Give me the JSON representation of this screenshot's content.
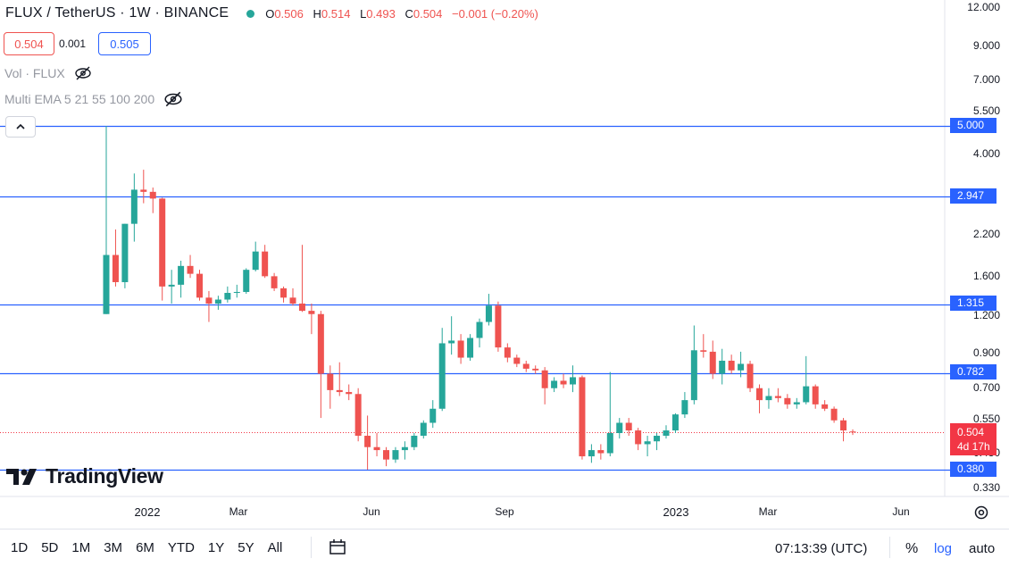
{
  "header": {
    "title": "FLUX / TetherUS · 1W · BINANCE",
    "ohlc": {
      "o_label": "O",
      "o": "0.506",
      "h_label": "H",
      "h": "0.514",
      "l_label": "L",
      "l": "0.493",
      "c_label": "C",
      "c": "0.504",
      "change": "−0.001 (−0.20%)"
    },
    "status_color": "#26a69a"
  },
  "trade": {
    "sell": "0.504",
    "spread": "0.001",
    "buy": "0.505"
  },
  "indicators": [
    {
      "label": "Vol · FLUX",
      "icon": "eye-off-icon"
    },
    {
      "label": "Multi EMA 5 21 55 100 200",
      "icon": "eye-off-icon"
    }
  ],
  "logo": {
    "text": "TradingView"
  },
  "price_axis": {
    "labels": [
      "12.000",
      "9.000",
      "7.000",
      "5.500",
      "4.000",
      "2.200",
      "1.600",
      "1.200",
      "0.900",
      "0.700",
      "0.550",
      "0.430",
      "0.330"
    ],
    "levels": [
      "5.000",
      "2.947",
      "1.315",
      "0.782",
      "0.380"
    ],
    "last_price": "0.504",
    "countdown": "4d 17h"
  },
  "time_axis": {
    "labels": [
      {
        "text": "2022",
        "year": true
      },
      {
        "text": "Mar",
        "year": false
      },
      {
        "text": "Jun",
        "year": false
      },
      {
        "text": "Sep",
        "year": false
      },
      {
        "text": "2023",
        "year": true
      },
      {
        "text": "Mar",
        "year": false
      },
      {
        "text": "Jun",
        "year": false
      }
    ]
  },
  "bottom_bar": {
    "ranges": [
      "1D",
      "5D",
      "1M",
      "3M",
      "6M",
      "YTD",
      "1Y",
      "5Y",
      "All"
    ],
    "clock": "07:13:39 (UTC)",
    "percent": "%",
    "log": "log",
    "auto": "auto"
  },
  "colors": {
    "up": "#26a69a",
    "down": "#ef5350",
    "level": "#2962ff",
    "last": "#f23645"
  },
  "chart_data": {
    "type": "candlestick",
    "interval": "1W",
    "scale": "log",
    "x_range": [
      "2021-11-29",
      "2023-06-05"
    ],
    "y_range": [
      0.3,
      12.0
    ],
    "horizontal_levels": [
      5.0,
      2.947,
      1.315,
      0.782,
      0.38
    ],
    "last_price": 0.504,
    "candles": [
      {
        "t": "2021-11-29",
        "o": 1.22,
        "h": 5.0,
        "l": 1.22,
        "c": 1.9
      },
      {
        "t": "2021-12-06",
        "o": 1.9,
        "h": 2.3,
        "l": 1.5,
        "c": 1.55
      },
      {
        "t": "2021-12-13",
        "o": 1.55,
        "h": 2.4,
        "l": 1.48,
        "c": 2.4
      },
      {
        "t": "2021-12-20",
        "o": 2.4,
        "h": 3.5,
        "l": 2.1,
        "c": 3.1
      },
      {
        "t": "2021-12-27",
        "o": 3.1,
        "h": 3.6,
        "l": 2.8,
        "c": 3.05
      },
      {
        "t": "2022-01-03",
        "o": 3.05,
        "h": 3.15,
        "l": 2.6,
        "c": 2.9
      },
      {
        "t": "2022-01-10",
        "o": 2.9,
        "h": 2.92,
        "l": 1.35,
        "c": 1.5
      },
      {
        "t": "2022-01-17",
        "o": 1.5,
        "h": 1.7,
        "l": 1.32,
        "c": 1.52
      },
      {
        "t": "2022-01-24",
        "o": 1.52,
        "h": 1.82,
        "l": 1.38,
        "c": 1.75
      },
      {
        "t": "2022-01-31",
        "o": 1.75,
        "h": 1.9,
        "l": 1.6,
        "c": 1.65
      },
      {
        "t": "2022-02-07",
        "o": 1.65,
        "h": 1.7,
        "l": 1.35,
        "c": 1.38
      },
      {
        "t": "2022-02-14",
        "o": 1.38,
        "h": 1.45,
        "l": 1.15,
        "c": 1.32
      },
      {
        "t": "2022-02-21",
        "o": 1.32,
        "h": 1.4,
        "l": 1.26,
        "c": 1.36
      },
      {
        "t": "2022-02-28",
        "o": 1.36,
        "h": 1.5,
        "l": 1.33,
        "c": 1.43
      },
      {
        "t": "2022-03-07",
        "o": 1.43,
        "h": 1.52,
        "l": 1.38,
        "c": 1.44
      },
      {
        "t": "2022-03-14",
        "o": 1.44,
        "h": 1.72,
        "l": 1.42,
        "c": 1.7
      },
      {
        "t": "2022-03-21",
        "o": 1.7,
        "h": 2.1,
        "l": 1.68,
        "c": 1.95
      },
      {
        "t": "2022-03-28",
        "o": 1.95,
        "h": 2.05,
        "l": 1.6,
        "c": 1.62
      },
      {
        "t": "2022-04-04",
        "o": 1.62,
        "h": 1.66,
        "l": 1.45,
        "c": 1.48
      },
      {
        "t": "2022-04-11",
        "o": 1.48,
        "h": 1.5,
        "l": 1.33,
        "c": 1.38
      },
      {
        "t": "2022-04-18",
        "o": 1.38,
        "h": 1.48,
        "l": 1.3,
        "c": 1.32
      },
      {
        "t": "2022-04-25",
        "o": 1.32,
        "h": 2.05,
        "l": 1.24,
        "c": 1.25
      },
      {
        "t": "2022-05-02",
        "o": 1.25,
        "h": 1.32,
        "l": 1.05,
        "c": 1.22
      },
      {
        "t": "2022-05-09",
        "o": 1.22,
        "h": 1.25,
        "l": 0.56,
        "c": 0.78
      },
      {
        "t": "2022-05-16",
        "o": 0.78,
        "h": 0.83,
        "l": 0.6,
        "c": 0.69
      },
      {
        "t": "2022-05-23",
        "o": 0.69,
        "h": 0.85,
        "l": 0.66,
        "c": 0.68
      },
      {
        "t": "2022-05-30",
        "o": 0.68,
        "h": 0.72,
        "l": 0.64,
        "c": 0.67
      },
      {
        "t": "2022-06-06",
        "o": 0.67,
        "h": 0.7,
        "l": 0.47,
        "c": 0.49
      },
      {
        "t": "2022-06-13",
        "o": 0.49,
        "h": 0.57,
        "l": 0.38,
        "c": 0.45
      },
      {
        "t": "2022-06-20",
        "o": 0.45,
        "h": 0.5,
        "l": 0.42,
        "c": 0.44
      },
      {
        "t": "2022-06-27",
        "o": 0.44,
        "h": 0.45,
        "l": 0.39,
        "c": 0.41
      },
      {
        "t": "2022-07-04",
        "o": 0.41,
        "h": 0.45,
        "l": 0.4,
        "c": 0.44
      },
      {
        "t": "2022-07-11",
        "o": 0.44,
        "h": 0.47,
        "l": 0.41,
        "c": 0.45
      },
      {
        "t": "2022-07-18",
        "o": 0.45,
        "h": 0.5,
        "l": 0.44,
        "c": 0.49
      },
      {
        "t": "2022-07-25",
        "o": 0.49,
        "h": 0.55,
        "l": 0.48,
        "c": 0.54
      },
      {
        "t": "2022-08-01",
        "o": 0.54,
        "h": 0.64,
        "l": 0.52,
        "c": 0.6
      },
      {
        "t": "2022-08-08",
        "o": 0.6,
        "h": 1.1,
        "l": 0.59,
        "c": 0.98
      },
      {
        "t": "2022-08-15",
        "o": 0.98,
        "h": 1.2,
        "l": 0.9,
        "c": 1.0
      },
      {
        "t": "2022-08-22",
        "o": 1.0,
        "h": 1.05,
        "l": 0.84,
        "c": 0.88
      },
      {
        "t": "2022-08-29",
        "o": 0.88,
        "h": 1.05,
        "l": 0.86,
        "c": 1.02
      },
      {
        "t": "2022-09-05",
        "o": 1.02,
        "h": 1.18,
        "l": 0.95,
        "c": 1.15
      },
      {
        "t": "2022-09-12",
        "o": 1.15,
        "h": 1.42,
        "l": 1.12,
        "c": 1.3
      },
      {
        "t": "2022-09-19",
        "o": 1.3,
        "h": 1.34,
        "l": 0.92,
        "c": 0.95
      },
      {
        "t": "2022-09-26",
        "o": 0.95,
        "h": 0.98,
        "l": 0.85,
        "c": 0.88
      },
      {
        "t": "2022-10-03",
        "o": 0.88,
        "h": 0.9,
        "l": 0.82,
        "c": 0.84
      },
      {
        "t": "2022-10-10",
        "o": 0.84,
        "h": 0.86,
        "l": 0.79,
        "c": 0.81
      },
      {
        "t": "2022-10-17",
        "o": 0.81,
        "h": 0.83,
        "l": 0.78,
        "c": 0.8
      },
      {
        "t": "2022-10-24",
        "o": 0.8,
        "h": 0.82,
        "l": 0.62,
        "c": 0.7
      },
      {
        "t": "2022-10-31",
        "o": 0.7,
        "h": 0.76,
        "l": 0.68,
        "c": 0.74
      },
      {
        "t": "2022-11-07",
        "o": 0.74,
        "h": 0.78,
        "l": 0.7,
        "c": 0.72
      },
      {
        "t": "2022-11-14",
        "o": 0.72,
        "h": 0.83,
        "l": 0.68,
        "c": 0.76
      },
      {
        "t": "2022-11-21",
        "o": 0.76,
        "h": 0.77,
        "l": 0.41,
        "c": 0.42
      },
      {
        "t": "2022-11-28",
        "o": 0.42,
        "h": 0.46,
        "l": 0.4,
        "c": 0.44
      },
      {
        "t": "2022-12-05",
        "o": 0.44,
        "h": 0.46,
        "l": 0.41,
        "c": 0.43
      },
      {
        "t": "2022-12-12",
        "o": 0.43,
        "h": 0.79,
        "l": 0.42,
        "c": 0.5
      },
      {
        "t": "2022-12-19",
        "o": 0.5,
        "h": 0.56,
        "l": 0.48,
        "c": 0.54
      },
      {
        "t": "2022-12-26",
        "o": 0.54,
        "h": 0.56,
        "l": 0.49,
        "c": 0.51
      },
      {
        "t": "2023-01-02",
        "o": 0.51,
        "h": 0.52,
        "l": 0.44,
        "c": 0.46
      },
      {
        "t": "2023-01-09",
        "o": 0.46,
        "h": 0.49,
        "l": 0.42,
        "c": 0.47
      },
      {
        "t": "2023-01-16",
        "o": 0.47,
        "h": 0.5,
        "l": 0.44,
        "c": 0.49
      },
      {
        "t": "2023-01-23",
        "o": 0.49,
        "h": 0.53,
        "l": 0.48,
        "c": 0.51
      },
      {
        "t": "2023-01-30",
        "o": 0.51,
        "h": 0.58,
        "l": 0.5,
        "c": 0.575
      },
      {
        "t": "2023-02-06",
        "o": 0.575,
        "h": 0.68,
        "l": 0.56,
        "c": 0.64
      },
      {
        "t": "2023-02-13",
        "o": 0.64,
        "h": 1.12,
        "l": 0.62,
        "c": 0.93
      },
      {
        "t": "2023-02-20",
        "o": 0.93,
        "h": 1.05,
        "l": 0.88,
        "c": 0.92
      },
      {
        "t": "2023-02-27",
        "o": 0.92,
        "h": 1.0,
        "l": 0.75,
        "c": 0.78
      },
      {
        "t": "2023-03-06",
        "o": 0.78,
        "h": 0.94,
        "l": 0.72,
        "c": 0.86
      },
      {
        "t": "2023-03-13",
        "o": 0.86,
        "h": 0.9,
        "l": 0.78,
        "c": 0.8
      },
      {
        "t": "2023-03-20",
        "o": 0.8,
        "h": 0.92,
        "l": 0.76,
        "c": 0.84
      },
      {
        "t": "2023-03-27",
        "o": 0.84,
        "h": 0.86,
        "l": 0.68,
        "c": 0.7
      },
      {
        "t": "2023-04-03",
        "o": 0.7,
        "h": 0.72,
        "l": 0.58,
        "c": 0.64
      },
      {
        "t": "2023-04-10",
        "o": 0.64,
        "h": 0.7,
        "l": 0.6,
        "c": 0.66
      },
      {
        "t": "2023-04-17",
        "o": 0.66,
        "h": 0.7,
        "l": 0.63,
        "c": 0.65
      },
      {
        "t": "2023-04-24",
        "o": 0.65,
        "h": 0.67,
        "l": 0.6,
        "c": 0.62
      },
      {
        "t": "2023-05-01",
        "o": 0.62,
        "h": 0.65,
        "l": 0.6,
        "c": 0.63
      },
      {
        "t": "2023-05-08",
        "o": 0.63,
        "h": 0.89,
        "l": 0.62,
        "c": 0.71
      },
      {
        "t": "2023-05-15",
        "o": 0.71,
        "h": 0.72,
        "l": 0.6,
        "c": 0.62
      },
      {
        "t": "2023-05-22",
        "o": 0.62,
        "h": 0.64,
        "l": 0.59,
        "c": 0.6
      },
      {
        "t": "2023-05-29",
        "o": 0.6,
        "h": 0.61,
        "l": 0.54,
        "c": 0.55
      },
      {
        "t": "2023-06-05",
        "o": 0.55,
        "h": 0.56,
        "l": 0.47,
        "c": 0.51
      },
      {
        "t": "2023-06-12",
        "o": 0.506,
        "h": 0.514,
        "l": 0.493,
        "c": 0.504
      }
    ]
  }
}
